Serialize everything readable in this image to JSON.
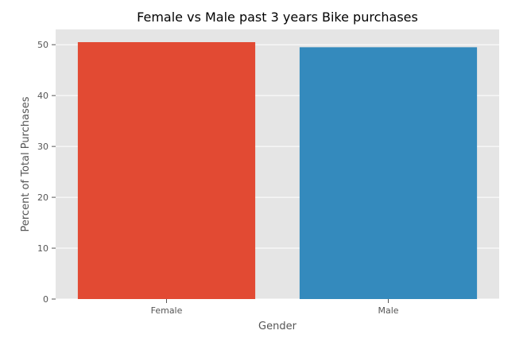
{
  "chart_data": {
    "type": "bar",
    "title": "Female vs Male past 3 years Bike purchases",
    "xlabel": "Gender",
    "ylabel": "Percent of Total Purchases",
    "categories": [
      "Female",
      "Male"
    ],
    "values": [
      50.5,
      49.5
    ],
    "ylim": [
      0,
      53
    ],
    "yticks": [
      0,
      10,
      20,
      30,
      40,
      50
    ],
    "grid": true,
    "legend": "none",
    "colors": {
      "bars": [
        "#E24A33",
        "#348ABD"
      ],
      "background": "#E5E5E5",
      "grid": "#FFFFFF",
      "text": "#555555",
      "title": "#000000"
    }
  }
}
